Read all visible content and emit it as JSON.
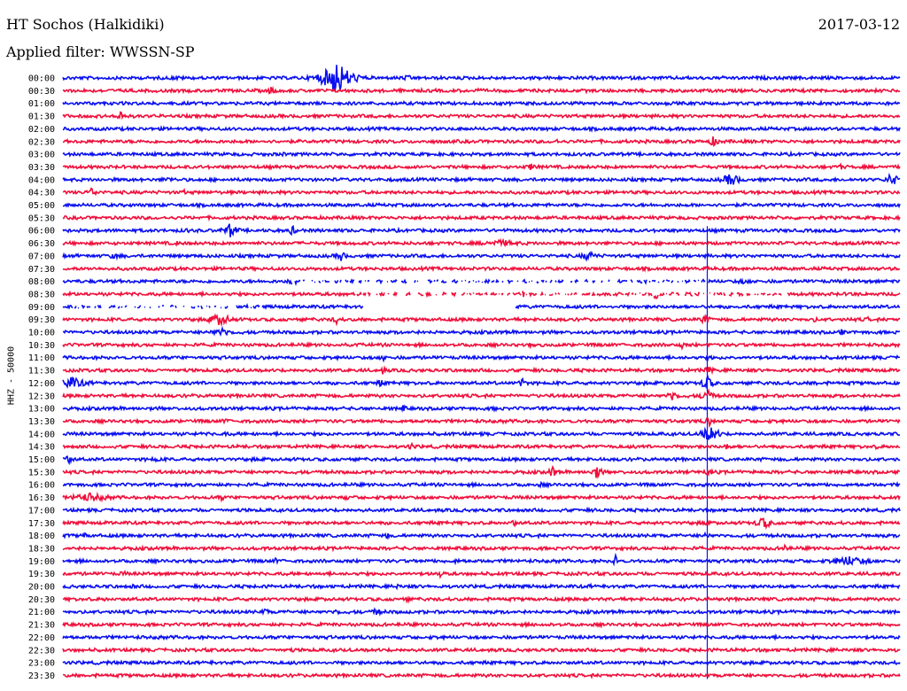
{
  "header": {
    "station": "HT Sochos (Halkidiki)",
    "date": "2017-03-12",
    "filter": "Applied filter: WWSSN-SP",
    "channel": "HHZ - 50000"
  },
  "colors": {
    "even": "#0a10f0",
    "odd": "#f0103c"
  },
  "chart_data": {
    "type": "line",
    "title": "HT Sochos (Halkidiki)",
    "subtitle": "Applied filter: WWSSN-SP",
    "ylabel": "HHZ - 50000",
    "xlabel": "",
    "grid": false,
    "rows": [
      "00:00",
      "00:30",
      "01:00",
      "01:30",
      "02:00",
      "02:30",
      "03:00",
      "03:30",
      "04:00",
      "04:30",
      "05:00",
      "05:30",
      "06:00",
      "06:30",
      "07:00",
      "07:30",
      "08:00",
      "08:30",
      "09:00",
      "09:30",
      "10:00",
      "10:30",
      "11:00",
      "11:30",
      "12:00",
      "12:30",
      "13:00",
      "13:30",
      "14:00",
      "14:30",
      "15:00",
      "15:30",
      "16:00",
      "16:30",
      "17:00",
      "17:30",
      "18:00",
      "18:30",
      "19:00",
      "19:30",
      "20:00",
      "20:30",
      "21:00",
      "21:30",
      "22:00",
      "22:30",
      "23:00",
      "23:30"
    ]
  }
}
